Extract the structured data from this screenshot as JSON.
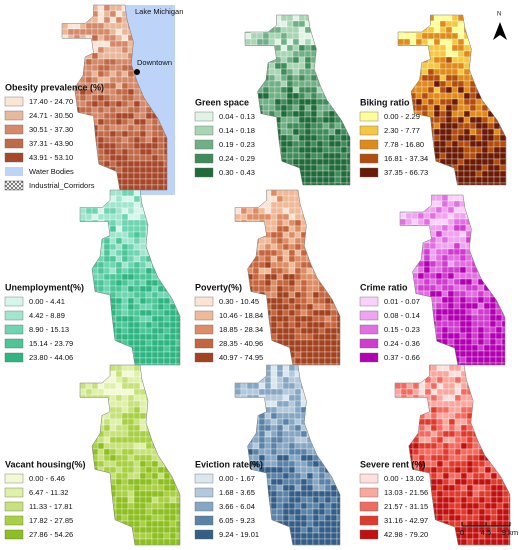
{
  "panels": [
    {
      "title": "Obesity prevalence (%)",
      "classes": [
        {
          "label": "17.40 - 24.70",
          "color": "#fbe5d6"
        },
        {
          "label": "24.71 - 30.50",
          "color": "#e9b79a"
        },
        {
          "label": "30.51 - 37.30",
          "color": "#d4896a"
        },
        {
          "label": "37.31 - 43.90",
          "color": "#c06a47"
        },
        {
          "label": "43.91 - 53.10",
          "color": "#a8482a"
        }
      ]
    },
    {
      "title": "Green space",
      "classes": [
        {
          "label": "0.04 - 0.13",
          "color": "#e0f3e6"
        },
        {
          "label": "0.14 - 0.18",
          "color": "#a8d5b4"
        },
        {
          "label": "0.19 - 0.23",
          "color": "#6fb086"
        },
        {
          "label": "0.24 - 0.29",
          "color": "#3f8c5a"
        },
        {
          "label": "0.30 - 0.43",
          "color": "#1f6b3a"
        }
      ]
    },
    {
      "title": "Biking ratio",
      "classes": [
        {
          "label": "0.00 - 2.29",
          "color": "#ffff99"
        },
        {
          "label": "2.30 - 7.77",
          "color": "#f5c842"
        },
        {
          "label": "7.78 - 16.80",
          "color": "#e08a1a"
        },
        {
          "label": "16.81 - 37.34",
          "color": "#b34d0c"
        },
        {
          "label": "37.35 - 66.73",
          "color": "#6b1a05"
        }
      ]
    },
    {
      "title": "Unemployment(%)",
      "classes": [
        {
          "label": "0.00 - 4.41",
          "color": "#d6f5ec"
        },
        {
          "label": "4.42 - 8.89",
          "color": "#a2e5cf"
        },
        {
          "label": "8.90 - 15.13",
          "color": "#6fd4b1"
        },
        {
          "label": "15.14 - 23.79",
          "color": "#4cc597"
        },
        {
          "label": "23.80 - 44.06",
          "color": "#2fb582"
        }
      ]
    },
    {
      "title": "Poverty(%)",
      "classes": [
        {
          "label": "0.30 - 10.45",
          "color": "#fbe3d5"
        },
        {
          "label": "10.46 - 18.84",
          "color": "#f0b997"
        },
        {
          "label": "18.85 - 28.34",
          "color": "#dd8d65"
        },
        {
          "label": "28.35 - 40.96",
          "color": "#c5653d"
        },
        {
          "label": "40.97 - 74.95",
          "color": "#a3421f"
        }
      ]
    },
    {
      "title": "Crime ratio",
      "classes": [
        {
          "label": "0.01 - 0.07",
          "color": "#fad1fa"
        },
        {
          "label": "0.08 - 0.14",
          "color": "#f0a3f0"
        },
        {
          "label": "0.15 - 0.23",
          "color": "#e26fe2"
        },
        {
          "label": "0.24 - 0.36",
          "color": "#cf3ccf"
        },
        {
          "label": "0.37 - 0.66",
          "color": "#b300b3"
        }
      ]
    },
    {
      "title": "Vacant housing(%)",
      "classes": [
        {
          "label": "0.00 - 6.46",
          "color": "#f2f9d4"
        },
        {
          "label": "6.47 - 11.32",
          "color": "#dff0a9"
        },
        {
          "label": "11.33 - 17.81",
          "color": "#c7e27a"
        },
        {
          "label": "17.82 - 27.85",
          "color": "#a9d043"
        },
        {
          "label": "27.86 - 54.26",
          "color": "#8cbf1f"
        }
      ]
    },
    {
      "title": "Eviction rate(%)",
      "classes": [
        {
          "label": "0.00 - 1.67",
          "color": "#dce6ef"
        },
        {
          "label": "1.68 - 3.65",
          "color": "#b3c8db"
        },
        {
          "label": "3.66 - 6.04",
          "color": "#86a7c3"
        },
        {
          "label": "6.05 - 9.23",
          "color": "#5a83a7"
        },
        {
          "label": "9.24 - 19.01",
          "color": "#345e87"
        }
      ]
    },
    {
      "title": "Severe rent (%)",
      "classes": [
        {
          "label": "0.00 - 13.02",
          "color": "#fde0dd"
        },
        {
          "label": "13.03 - 21.56",
          "color": "#f9a8a0"
        },
        {
          "label": "21.57 - 31.15",
          "color": "#f26b60"
        },
        {
          "label": "31.16 - 42.97",
          "color": "#e03a2c"
        },
        {
          "label": "42.98 - 79.20",
          "color": "#c40f0f"
        }
      ]
    }
  ],
  "water_bodies": {
    "label": "Water Bodies",
    "color": "#bdd3f7"
  },
  "industrial_corridors": {
    "label": "Industrial_Corridors"
  },
  "map_labels": {
    "lake": "Lake Michigan",
    "downtown": "Downtown"
  },
  "north": "N",
  "scale_bar": [
    "0",
    "4.5",
    "9 km"
  ]
}
